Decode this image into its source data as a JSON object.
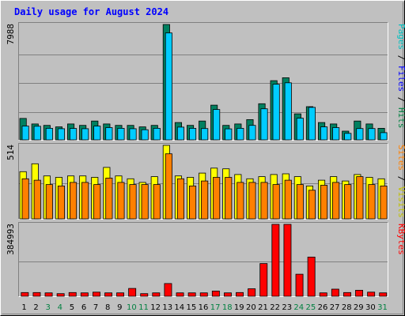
{
  "chart_data": {
    "title": "Daily usage for August 2024",
    "type": "bar",
    "days": [
      "1",
      "2",
      "3",
      "4",
      "5",
      "6",
      "7",
      "8",
      "9",
      "10",
      "11",
      "12",
      "13",
      "14",
      "15",
      "16",
      "17",
      "18",
      "19",
      "20",
      "21",
      "22",
      "23",
      "24",
      "25",
      "26",
      "27",
      "28",
      "29",
      "30",
      "31"
    ],
    "weekend_days": [
      "3",
      "4",
      "10",
      "11",
      "17",
      "18",
      "24",
      "25",
      "31"
    ],
    "colors": {
      "pages": "#00ffff",
      "files": "#0000ff",
      "hits": "#008040",
      "sites": "#ff8000",
      "visits": "#ffff00",
      "kbytes": "#ff0000",
      "weekday_label": "#000000",
      "weekend_label": "#008040",
      "title": "#0000ff"
    },
    "panels": [
      {
        "name": "hits-files-pages",
        "max_label": "7988",
        "ymax": 7988,
        "side_label_parts": [
          {
            "text": "Pages",
            "color": "#00c0c0"
          },
          {
            "text": " / ",
            "color": "#000000"
          },
          {
            "text": "Files",
            "color": "#0000ff"
          },
          {
            "text": " / ",
            "color": "#000000"
          },
          {
            "text": "Hits",
            "color": "#008040"
          }
        ],
        "series": [
          {
            "name": "Hits",
            "color": "#008060",
            "values": [
              1480,
              1100,
              1000,
              900,
              1100,
              1000,
              1300,
              1100,
              1000,
              1000,
              900,
              1000,
              7988,
              1200,
              1000,
              1300,
              2400,
              1000,
              1100,
              1400,
              2500,
              4100,
              4300,
              1800,
              2300,
              1200,
              1100,
              600,
              1300,
              1100,
              800
            ]
          },
          {
            "name": "Pages",
            "color": "#00ccff",
            "values": [
              950,
              940,
              800,
              770,
              790,
              770,
              950,
              850,
              800,
              770,
              700,
              800,
              7400,
              880,
              800,
              780,
              2100,
              760,
              800,
              1000,
              2150,
              3850,
              3950,
              1500,
              2250,
              900,
              850,
              450,
              780,
              780,
              500
            ]
          }
        ]
      },
      {
        "name": "visits-sites",
        "max_label": "514",
        "ymax": 514,
        "side_label_parts": [
          {
            "text": "Sites",
            "color": "#ff8000"
          },
          {
            "text": " / ",
            "color": "#000000"
          },
          {
            "text": "Visits",
            "color": "#c0c000"
          }
        ],
        "series": [
          {
            "name": "Visits",
            "color": "#ffff00",
            "values": [
              330,
              385,
              300,
              290,
              300,
              300,
              290,
              360,
              300,
              280,
              255,
              295,
              514,
              300,
              290,
              320,
              355,
              350,
              310,
              280,
              295,
              310,
              315,
              295,
              230,
              270,
              295,
              265,
              310,
              290,
              280
            ]
          },
          {
            "name": "Sites",
            "color": "#ff8000",
            "values": [
              280,
              270,
              240,
              230,
              255,
              255,
              240,
              285,
              255,
              240,
              240,
              240,
              455,
              280,
              230,
              265,
              290,
              290,
              255,
              255,
              255,
              240,
              270,
              240,
              200,
              235,
              255,
              240,
              295,
              240,
              230
            ]
          }
        ]
      },
      {
        "name": "kbytes",
        "max_label": "384993",
        "ymax": 384993,
        "side_label_parts": [
          {
            "text": "KBytes",
            "color": "#ff0000"
          }
        ],
        "series": [
          {
            "name": "KBytes",
            "color": "#ff0000",
            "values": [
              20000,
              20000,
              18000,
              14000,
              20000,
              18000,
              22000,
              18000,
              18000,
              42000,
              14000,
              18000,
              68000,
              18000,
              18000,
              18000,
              28000,
              18000,
              20000,
              40000,
              175000,
              384993,
              384993,
              118000,
              210000,
              18000,
              38000,
              20000,
              32000,
              22000,
              18000
            ]
          }
        ]
      }
    ]
  }
}
